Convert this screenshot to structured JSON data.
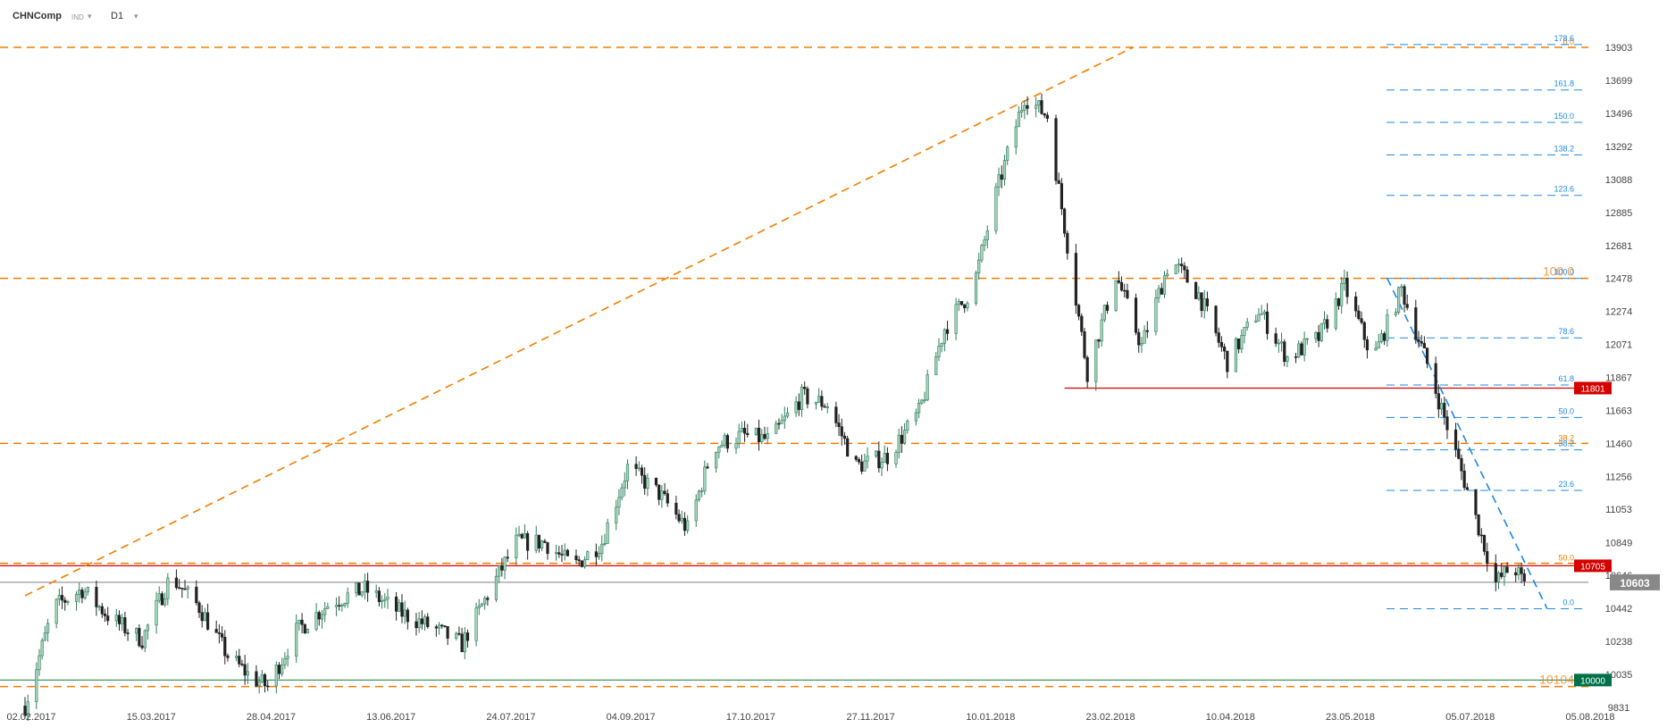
{
  "toolbar": {
    "symbol": "CHNComp",
    "exchange": "IND",
    "timeframe": "D1",
    "caret": "▾"
  },
  "chart_data": {
    "type": "candlestick",
    "y_axis": {
      "min": 9831,
      "max": 13903,
      "ticks": [
        13903,
        13699,
        13496,
        13292,
        13088,
        12885,
        12681,
        12478,
        12274,
        12071,
        11867,
        11663,
        11460,
        11256,
        11053,
        10849,
        10646,
        10442,
        10238,
        10035,
        9831
      ]
    },
    "x_axis": {
      "start": "2017-02-02",
      "end": "2018-08-05",
      "tick_labels": [
        "02.02.2017",
        "15.03.2017",
        "28.04.2017",
        "13.06.2017",
        "24.07.2017",
        "04.09.2017",
        "17.10.2017",
        "27.11.2017",
        "10.01.2018",
        "23.02.2018",
        "10.04.2018",
        "23.05.2018",
        "05.07.2018",
        "05.08.2018"
      ]
    },
    "price_badges": [
      {
        "label": "11801",
        "value": 11801,
        "color": "#d50000"
      },
      {
        "label": "10705",
        "value": 10705,
        "color": "#d50000"
      },
      {
        "label": "10603",
        "value": 10603,
        "color": "#888888"
      },
      {
        "label": "10000",
        "value": 10000,
        "color": "#00704a"
      }
    ],
    "horizontal_levels": [
      {
        "value": 13903,
        "style": "dashed",
        "color": "#f57c00"
      },
      {
        "value": 12478,
        "style": "dashed",
        "color": "#f57c00"
      },
      {
        "value": 11460,
        "style": "dashed",
        "color": "#f57c00"
      },
      {
        "value": 10720,
        "style": "dashed",
        "color": "#f57c00"
      },
      {
        "value": 9960,
        "style": "dashed",
        "color": "#f57c00"
      },
      {
        "value": 10705,
        "style": "solid",
        "color": "#d50000"
      },
      {
        "value": 10603,
        "style": "solid",
        "color": "#999999"
      },
      {
        "value": 10000,
        "style": "solid",
        "color": "#2e8b57"
      },
      {
        "value": 11801,
        "style": "solid",
        "color": "#d50000",
        "from": "2018-02-01"
      }
    ],
    "orange_fib_labels": [
      {
        "label": "0.0",
        "value": 13903
      },
      {
        "label": "100.0",
        "value": 12478
      },
      {
        "label": "38.2",
        "value": 11460
      },
      {
        "label": "50.0",
        "value": 10720
      },
      {
        "label": "10104",
        "value": 9960
      }
    ],
    "blue_fib_levels": [
      {
        "label": "178.6",
        "value": 13920
      },
      {
        "label": "161.8",
        "value": 13640
      },
      {
        "label": "150.0",
        "value": 13440
      },
      {
        "label": "138.2",
        "value": 13240
      },
      {
        "label": "123.6",
        "value": 12990
      },
      {
        "label": "100.0",
        "value": 12478
      },
      {
        "label": "78.6",
        "value": 12111
      },
      {
        "label": "61.8",
        "value": 11820
      },
      {
        "label": "50.0",
        "value": 11620
      },
      {
        "label": "38.2",
        "value": 11420
      },
      {
        "label": "23.6",
        "value": 11170
      },
      {
        "label": "0.0",
        "value": 10440
      }
    ],
    "trendlines": [
      {
        "from": [
          "2017-02-02",
          10520
        ],
        "to": [
          "2018-02-25",
          13903
        ],
        "color": "#f57c00"
      },
      {
        "from": [
          "2018-05-25",
          12478
        ],
        "to": [
          "2018-07-20",
          10440
        ],
        "color": "#1e88e5"
      }
    ],
    "price_path": [
      [
        "2017-02-02",
        9840
      ],
      [
        "2017-02-12",
        10450
      ],
      [
        "2017-02-22",
        10560
      ],
      [
        "2017-03-04",
        10380
      ],
      [
        "2017-03-15",
        10250
      ],
      [
        "2017-03-25",
        10640
      ],
      [
        "2017-04-04",
        10450
      ],
      [
        "2017-04-14",
        10150
      ],
      [
        "2017-04-22",
        10020
      ],
      [
        "2017-04-28",
        9960
      ],
      [
        "2017-05-08",
        10300
      ],
      [
        "2017-05-20",
        10480
      ],
      [
        "2017-06-01",
        10560
      ],
      [
        "2017-06-13",
        10420
      ],
      [
        "2017-06-25",
        10320
      ],
      [
        "2017-07-05",
        10220
      ],
      [
        "2017-07-15",
        10560
      ],
      [
        "2017-07-24",
        10850
      ],
      [
        "2017-08-03",
        10850
      ],
      [
        "2017-08-13",
        10700
      ],
      [
        "2017-08-23",
        10850
      ],
      [
        "2017-09-01",
        11310
      ],
      [
        "2017-09-12",
        11150
      ],
      [
        "2017-09-22",
        10930
      ],
      [
        "2017-10-01",
        11440
      ],
      [
        "2017-10-11",
        11510
      ],
      [
        "2017-10-21",
        11480
      ],
      [
        "2017-11-01",
        11750
      ],
      [
        "2017-11-10",
        11700
      ],
      [
        "2017-11-20",
        11320
      ],
      [
        "2017-12-01",
        11380
      ],
      [
        "2017-12-12",
        11650
      ],
      [
        "2017-12-21",
        12170
      ],
      [
        "2017-12-31",
        12420
      ],
      [
        "2018-01-08",
        13000
      ],
      [
        "2018-01-18",
        13600
      ],
      [
        "2018-01-26",
        13480
      ],
      [
        "2018-02-01",
        12800
      ],
      [
        "2018-02-09",
        11900
      ],
      [
        "2018-02-19",
        12500
      ],
      [
        "2018-02-28",
        12060
      ],
      [
        "2018-03-10",
        12600
      ],
      [
        "2018-03-20",
        12380
      ],
      [
        "2018-03-30",
        11960
      ],
      [
        "2018-04-10",
        12280
      ],
      [
        "2018-04-20",
        11990
      ],
      [
        "2018-05-01",
        12110
      ],
      [
        "2018-05-10",
        12430
      ],
      [
        "2018-05-20",
        11980
      ],
      [
        "2018-05-30",
        12410
      ],
      [
        "2018-06-08",
        11950
      ],
      [
        "2018-06-18",
        11400
      ],
      [
        "2018-06-25",
        11000
      ],
      [
        "2018-07-02",
        10600
      ],
      [
        "2018-07-08",
        10710
      ],
      [
        "2018-07-12",
        10590
      ]
    ],
    "grid": false,
    "legend": "none"
  }
}
